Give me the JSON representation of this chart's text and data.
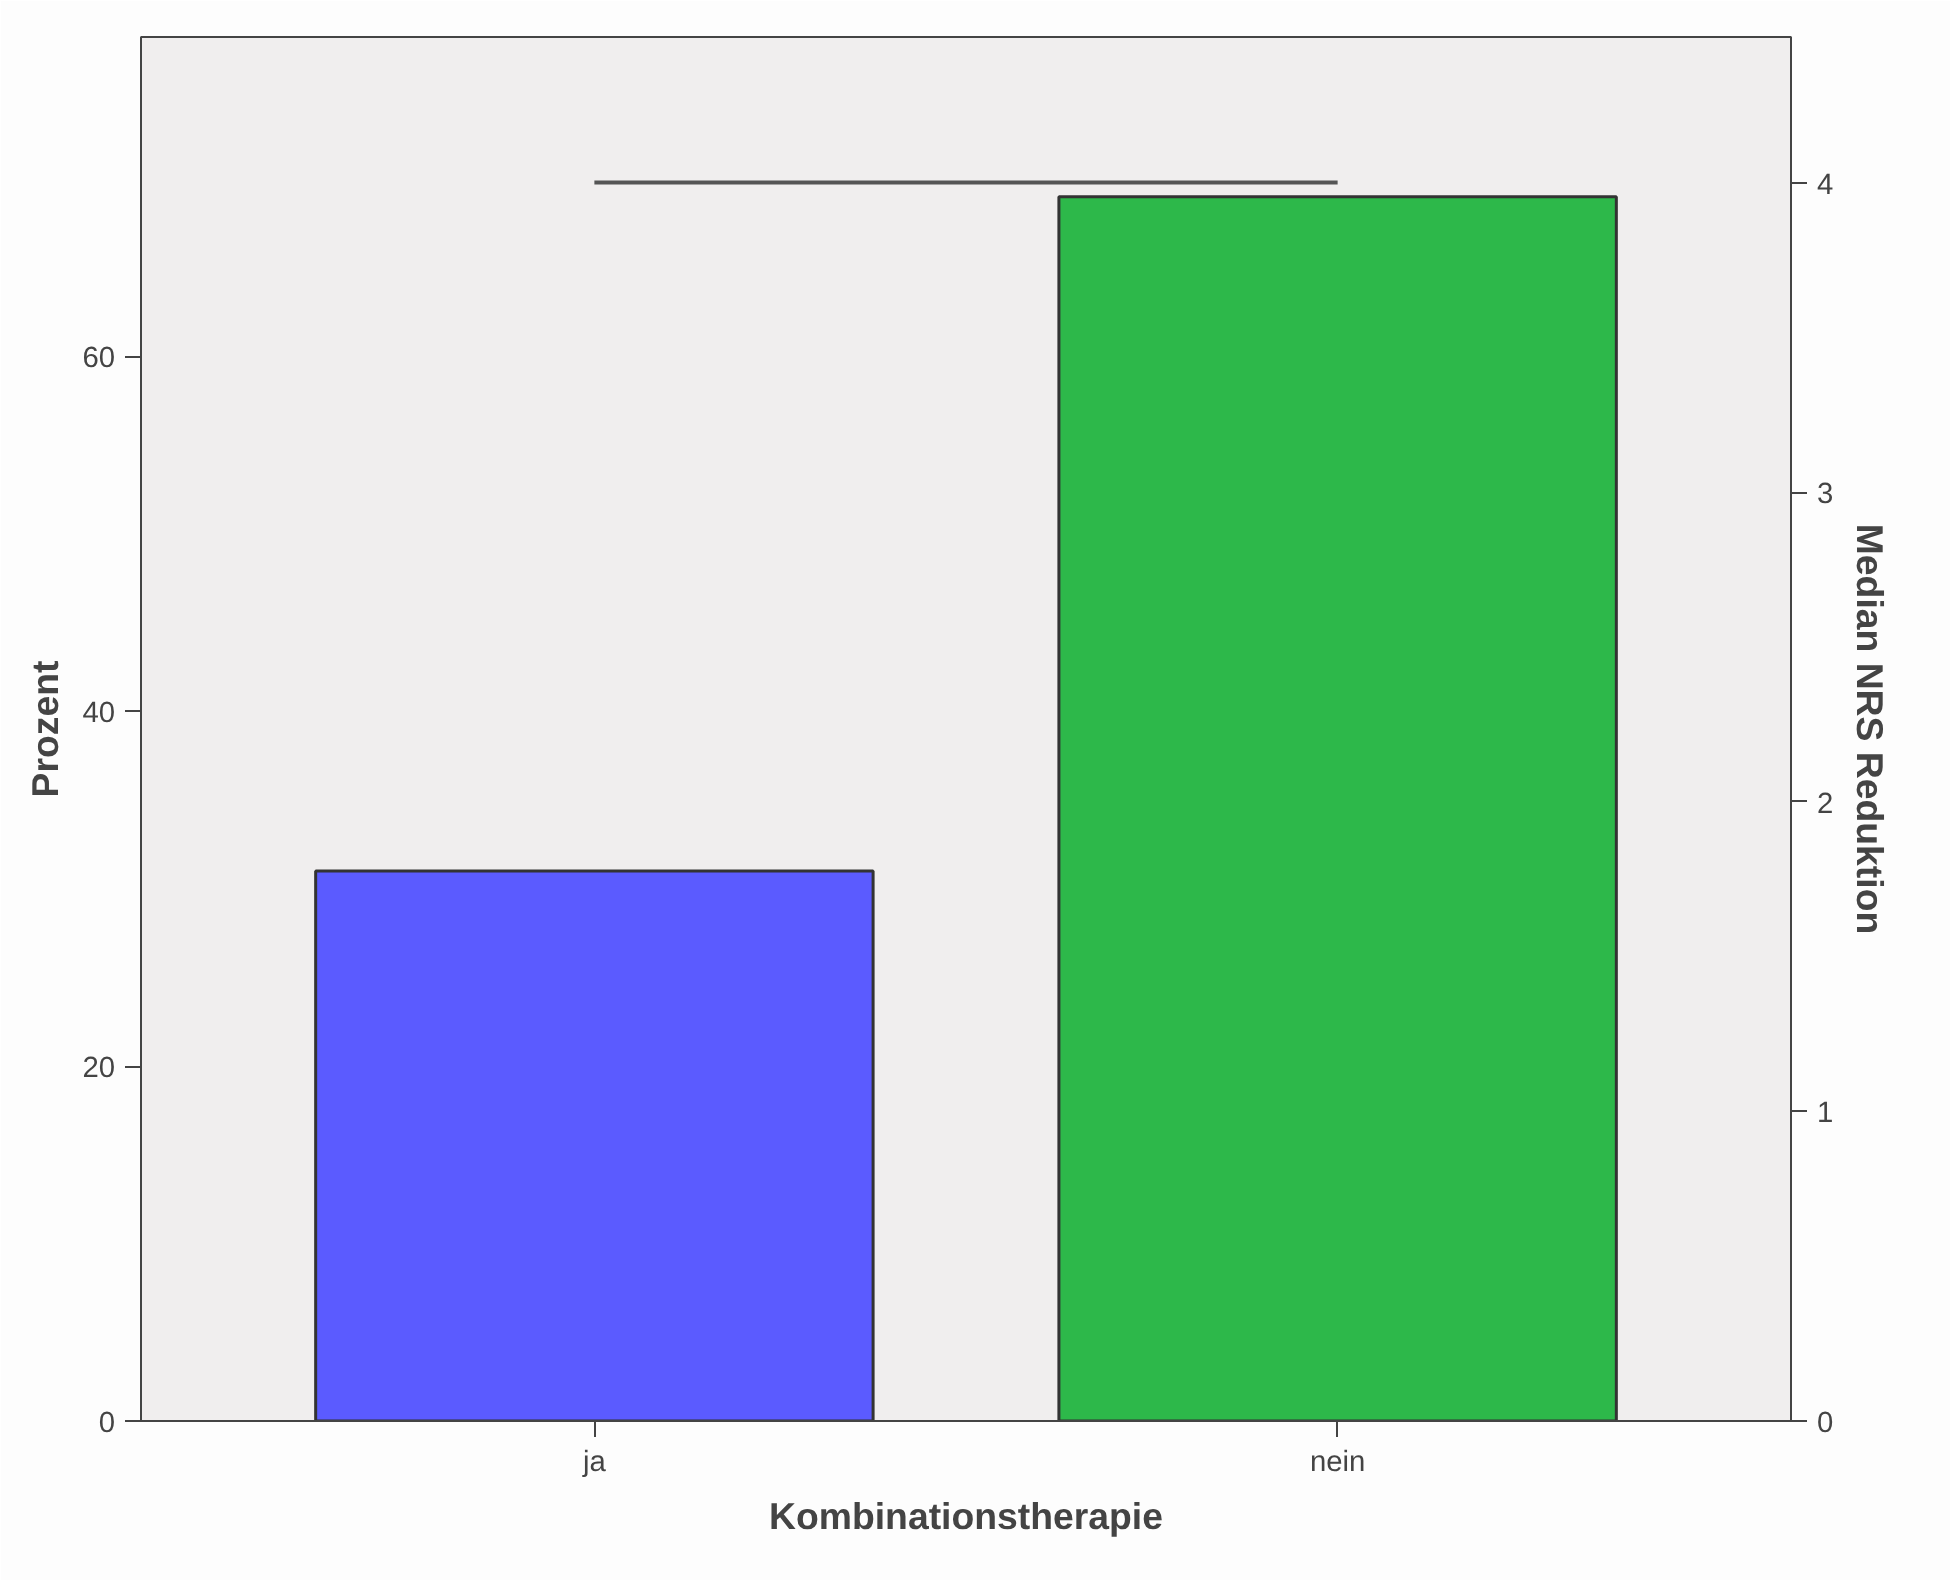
{
  "chart_data": {
    "type": "bar",
    "xlabel": "Kombinationstherapie",
    "ylabel": "Prozent",
    "y2label": "Median NRS Reduktion",
    "categories": [
      "ja",
      "nein"
    ],
    "series": [
      {
        "colors": [
          "#5b5bff",
          "#2db84a"
        ],
        "values": [
          31,
          69
        ]
      },
      {
        "type": "line",
        "axis": "y2",
        "color": "#555555",
        "values": [
          4,
          4
        ]
      }
    ],
    "ylim": [
      0,
      78
    ],
    "yticks": [
      0,
      20,
      40,
      60
    ],
    "y2lim": [
      0,
      4.47
    ],
    "y2ticks": [
      0,
      1,
      2,
      3,
      4
    ],
    "grid": false
  }
}
